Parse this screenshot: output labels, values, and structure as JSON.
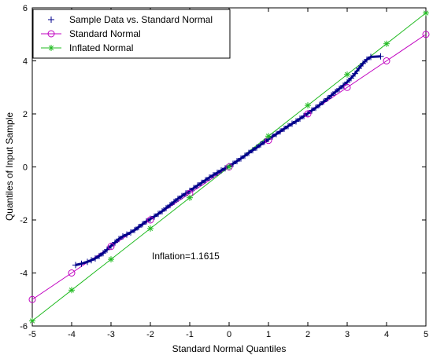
{
  "chart_data": {
    "type": "scatter",
    "xlabel": "Standard Normal Quantiles",
    "ylabel": "Quantiles of Input Sample",
    "xlim": [
      -5,
      5
    ],
    "ylim": [
      -6,
      6
    ],
    "xticks": [
      -5,
      -4,
      -3,
      -2,
      -1,
      0,
      1,
      2,
      3,
      4,
      5
    ],
    "yticks": [
      -6,
      -4,
      -2,
      0,
      2,
      4,
      6
    ],
    "grid": false,
    "legend_position": "top-left",
    "annotation": "Inflation=1.1615",
    "series": [
      {
        "name": "Sample Data vs. Standard Normal",
        "marker": "plus",
        "color": "#00008b",
        "x": [
          -3.9,
          -3.75,
          -3.6,
          -3.5,
          -3.4,
          -3.3,
          -3.2,
          -3.1,
          -3.0,
          -2.9,
          -2.8,
          -2.7,
          -2.6,
          -2.5,
          -2.4,
          -2.3,
          -2.2,
          -2.1,
          -2.0,
          -1.9,
          -1.8,
          -1.7,
          -1.6,
          -1.5,
          -1.4,
          -1.3,
          -1.2,
          -1.1,
          -1.0,
          -0.9,
          -0.8,
          -0.7,
          -0.6,
          -0.5,
          -0.4,
          -0.3,
          -0.2,
          -0.1,
          0.0,
          0.1,
          0.2,
          0.3,
          0.4,
          0.5,
          0.6,
          0.7,
          0.8,
          0.9,
          1.0,
          1.1,
          1.2,
          1.3,
          1.4,
          1.5,
          1.6,
          1.7,
          1.8,
          1.9,
          2.0,
          2.1,
          2.2,
          2.3,
          2.4,
          2.5,
          2.6,
          2.7,
          2.8,
          2.9,
          3.0,
          3.1,
          3.2,
          3.3,
          3.4,
          3.5,
          3.6,
          3.85
        ],
        "y": [
          -3.7,
          -3.65,
          -3.58,
          -3.52,
          -3.45,
          -3.36,
          -3.25,
          -3.12,
          -2.98,
          -2.85,
          -2.72,
          -2.62,
          -2.55,
          -2.47,
          -2.38,
          -2.27,
          -2.16,
          -2.05,
          -1.96,
          -1.87,
          -1.77,
          -1.67,
          -1.55,
          -1.44,
          -1.32,
          -1.2,
          -1.1,
          -1.0,
          -0.9,
          -0.8,
          -0.7,
          -0.6,
          -0.5,
          -0.4,
          -0.31,
          -0.22,
          -0.13,
          -0.05,
          0.03,
          0.12,
          0.22,
          0.32,
          0.42,
          0.53,
          0.63,
          0.73,
          0.84,
          0.95,
          1.05,
          1.15,
          1.24,
          1.34,
          1.44,
          1.54,
          1.63,
          1.72,
          1.82,
          1.92,
          2.02,
          2.13,
          2.23,
          2.34,
          2.46,
          2.58,
          2.7,
          2.83,
          2.95,
          3.07,
          3.2,
          3.35,
          3.52,
          3.72,
          3.9,
          4.05,
          4.15,
          4.17
        ]
      },
      {
        "name": "Standard Normal",
        "marker": "circle",
        "color": "#c000c0",
        "x": [
          -5,
          -4,
          -3,
          -2,
          -1,
          0,
          1,
          2,
          3,
          4,
          5
        ],
        "y": [
          -5,
          -4,
          -3,
          -2,
          -1,
          0,
          1,
          2,
          3,
          4,
          5
        ]
      },
      {
        "name": "Inflated Normal",
        "marker": "asterisk",
        "color": "#22bb22",
        "x": [
          -5,
          -4,
          -3,
          -2,
          -1,
          0,
          1,
          2,
          3,
          4,
          5
        ],
        "y": [
          -5.8075,
          -4.646,
          -3.4845,
          -2.323,
          -1.1615,
          0,
          1.1615,
          2.323,
          3.4845,
          4.646,
          5.8075
        ]
      }
    ]
  }
}
